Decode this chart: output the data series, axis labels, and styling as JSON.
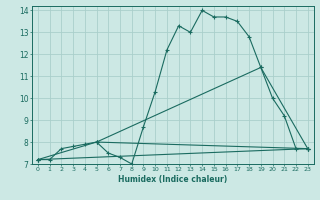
{
  "xlabel": "Humidex (Indice chaleur)",
  "bg_color": "#cce8e4",
  "grid_color": "#aacfcb",
  "line_color": "#1a6b60",
  "xlim": [
    -0.5,
    23.5
  ],
  "ylim": [
    7,
    14.2
  ],
  "xticks": [
    0,
    1,
    2,
    3,
    4,
    5,
    6,
    7,
    8,
    9,
    10,
    11,
    12,
    13,
    14,
    15,
    16,
    17,
    18,
    19,
    20,
    21,
    22,
    23
  ],
  "yticks": [
    7,
    8,
    9,
    10,
    11,
    12,
    13,
    14
  ],
  "series": [
    {
      "x": [
        0,
        1,
        2,
        3,
        4,
        5,
        6,
        7,
        8,
        9,
        10,
        11,
        12,
        13,
        14,
        15,
        16,
        17,
        18,
        19,
        20,
        21,
        22,
        23
      ],
      "y": [
        7.2,
        7.2,
        7.7,
        7.8,
        7.9,
        8.0,
        7.5,
        7.3,
        7.0,
        8.7,
        10.3,
        12.2,
        13.3,
        13.0,
        14.0,
        13.7,
        13.7,
        13.5,
        12.8,
        11.4,
        10.0,
        9.2,
        7.7,
        7.7
      ]
    },
    {
      "x": [
        0,
        5,
        23
      ],
      "y": [
        7.2,
        8.0,
        7.7
      ]
    },
    {
      "x": [
        0,
        23
      ],
      "y": [
        7.2,
        7.7
      ]
    },
    {
      "x": [
        5,
        19,
        23
      ],
      "y": [
        8.0,
        11.4,
        7.7
      ]
    }
  ]
}
